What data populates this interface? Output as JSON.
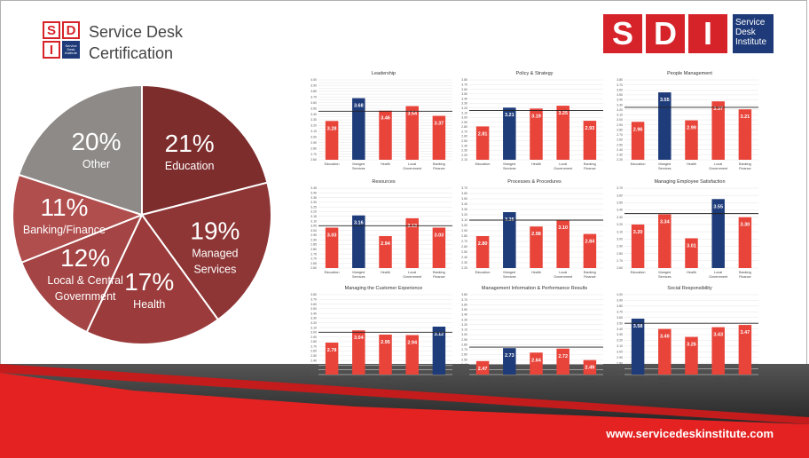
{
  "branding": {
    "logo_letters": [
      "S",
      "D",
      "I"
    ],
    "logo_small_text": "Service Desk Institute",
    "certification_line1": "Service Desk",
    "certification_line2": "Certification",
    "big_logo_letters": [
      "S",
      "D",
      "I"
    ],
    "big_logo_tag": "Service Desk Institute",
    "url": "www.servicedeskinstitute.com"
  },
  "colors": {
    "red": "#e8443a",
    "navy": "#1f3c7a",
    "brand_red": "#d6232a"
  },
  "chart_data": [
    {
      "type": "pie",
      "slices": [
        {
          "label": "Education",
          "value": 21,
          "color": "#7e2d2d"
        },
        {
          "label": "Managed Services",
          "value": 19,
          "color": "#8e3535"
        },
        {
          "label": "Health",
          "value": 17,
          "color": "#9b3b3b"
        },
        {
          "label": "Local & Central Government",
          "value": 12,
          "color": "#a44444"
        },
        {
          "label": "Banking/Finance",
          "value": 11,
          "color": "#b04d4d"
        },
        {
          "label": "Other",
          "value": 20,
          "color": "#8e8a88"
        }
      ],
      "value_suffix": "%"
    },
    {
      "type": "bar",
      "title": "Leadership",
      "categories": [
        "Education",
        "Manged Services",
        "Health",
        "Local Government",
        "Banking Finance"
      ],
      "values": [
        3.28,
        3.68,
        3.46,
        3.54,
        3.37
      ],
      "highlight": 1,
      "ylim": [
        2.6,
        4.0
      ],
      "ystep": 0.05,
      "ref": 3.45
    },
    {
      "type": "bar",
      "title": "Policy & Strategy",
      "categories": [
        "Education",
        "Manged Services",
        "Health",
        "Local Government",
        "Banking Finance"
      ],
      "values": [
        2.81,
        3.21,
        3.19,
        3.25,
        2.93
      ],
      "highlight": 1,
      "ylim": [
        2.1,
        3.8
      ],
      "ystep": 0.1,
      "ref": 3.15
    },
    {
      "type": "bar",
      "title": "People Management",
      "categories": [
        "Education",
        "Manged Services",
        "Health",
        "Local Government",
        "Banking Finance"
      ],
      "values": [
        2.96,
        3.55,
        2.99,
        3.37,
        3.21
      ],
      "highlight": 1,
      "ylim": [
        2.2,
        3.8
      ],
      "ystep": 0.1,
      "ref": 3.25
    },
    {
      "type": "bar",
      "title": "Resources",
      "categories": [
        "Education",
        "Manged Services",
        "Health",
        "Local Government",
        "Banking Finance"
      ],
      "values": [
        3.03,
        3.16,
        2.94,
        3.13,
        3.03
      ],
      "highlight": 1,
      "ylim": [
        2.6,
        3.45
      ],
      "ystep": 0.05,
      "ref": 3.05
    },
    {
      "type": "bar",
      "title": "Processes & Procedures",
      "categories": [
        "Education",
        "Manged Services",
        "Health",
        "Local Government",
        "Banking Finance"
      ],
      "values": [
        2.8,
        3.25,
        2.98,
        3.1,
        2.84
      ],
      "highlight": 1,
      "ylim": [
        2.2,
        3.7
      ],
      "ystep": 0.1,
      "ref": 3.1
    },
    {
      "type": "bar",
      "title": "Managing Employee Satisfaction",
      "categories": [
        "Education",
        "Manged Services",
        "Health",
        "Local Government",
        "Banking Finance"
      ],
      "values": [
        3.2,
        3.34,
        3.01,
        3.55,
        3.3
      ],
      "highlight": 3,
      "ylim": [
        2.6,
        3.7
      ],
      "ystep": 0.1,
      "ref": 3.35
    },
    {
      "type": "bar",
      "title": "Managing the Customer Experience",
      "categories": [
        "Education",
        "Manged Services",
        "Health",
        "Local Government",
        "Banking Finance"
      ],
      "values": [
        2.78,
        3.04,
        2.95,
        2.94,
        3.12
      ],
      "highlight": 4,
      "ylim": [
        2.1,
        3.8
      ],
      "ystep": 0.1,
      "ref": 3.0
    },
    {
      "type": "bar",
      "title": "Management Information & Performance Results",
      "categories": [
        "Education",
        "Manged Services",
        "Health",
        "Local Government",
        "Banking Finance"
      ],
      "values": [
        2.47,
        2.73,
        2.64,
        2.72,
        2.49
      ],
      "highlight": 1,
      "ylim": [
        2.2,
        3.8
      ],
      "ystep": 0.1,
      "ref": 2.75
    },
    {
      "type": "bar",
      "title": "Social Responsibility",
      "categories": [
        "Education",
        "Manged Services",
        "Health",
        "Local Government",
        "Banking Finance"
      ],
      "values": [
        3.58,
        3.4,
        3.26,
        3.43,
        3.47
      ],
      "highlight": 0,
      "ylim": [
        2.6,
        4.0
      ],
      "ystep": 0.1,
      "ref": 3.5
    }
  ]
}
